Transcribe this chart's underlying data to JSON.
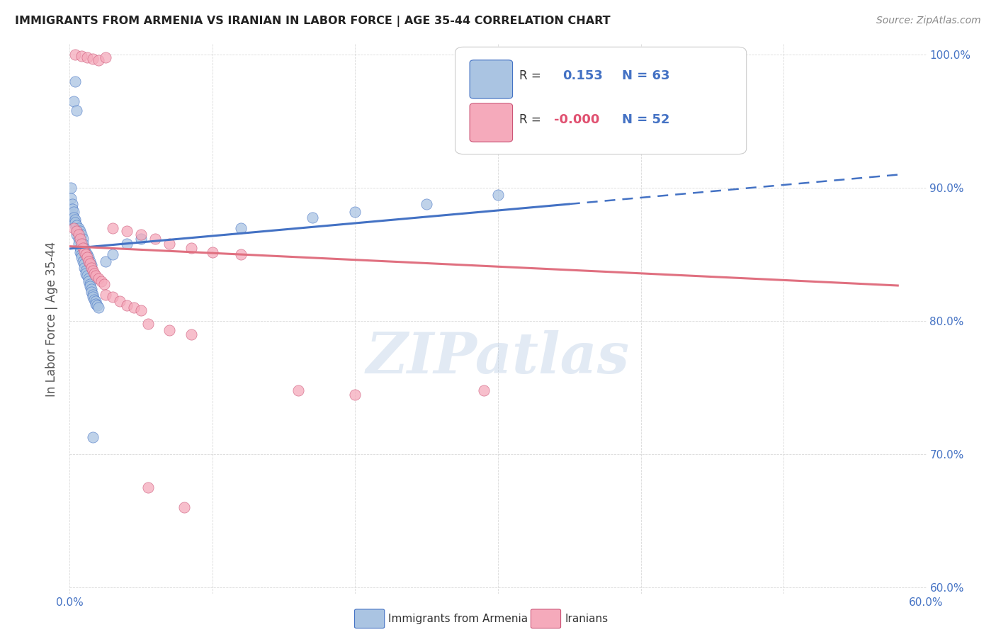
{
  "title": "IMMIGRANTS FROM ARMENIA VS IRANIAN IN LABOR FORCE | AGE 35-44 CORRELATION CHART",
  "source": "Source: ZipAtlas.com",
  "ylabel": "In Labor Force | Age 35-44",
  "legend_label1": "Immigrants from Armenia",
  "legend_label2": "Iranians",
  "r1": "0.153",
  "n1": "63",
  "r2": "-0.000",
  "n2": "52",
  "color_armenia": "#aac4e2",
  "color_iran": "#f5aabb",
  "color_armenia_line": "#4472c4",
  "color_iran_line": "#e07080",
  "xlim": [
    0.0,
    0.6
  ],
  "ylim": [
    0.595,
    1.008
  ],
  "background_color": "#ffffff",
  "watermark": "ZIPatlas"
}
